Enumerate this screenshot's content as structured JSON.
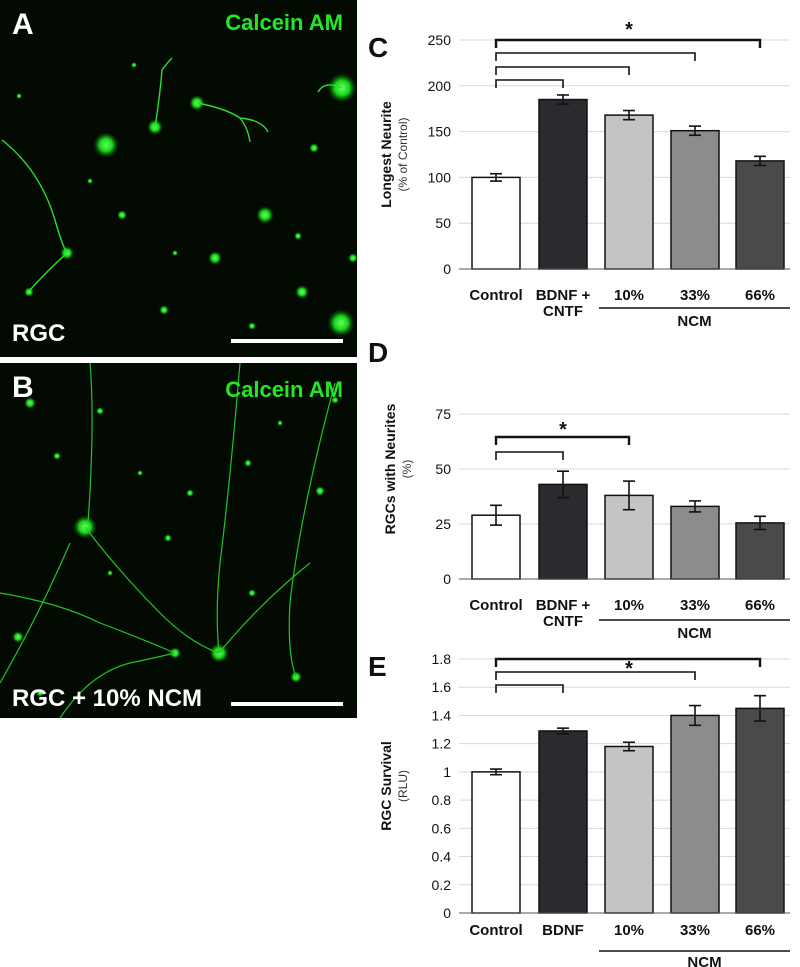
{
  "panel_a": {
    "letter": "A",
    "stain": "Calcein AM",
    "condition": "RGC"
  },
  "panel_b": {
    "letter": "B",
    "stain": "Calcein AM",
    "condition": "RGC + 10% NCM"
  },
  "chart_data": [
    {
      "panel": "C",
      "type": "bar",
      "ylabel": "Longest  Neurite",
      "ylabel_sub": "(% of Control)",
      "ylim": [
        0,
        250
      ],
      "yticks": [
        "0",
        "50",
        "100",
        "150",
        "200",
        "250"
      ],
      "categories": [
        "Control",
        "BDNF +\nCNTF",
        "10%",
        "33%",
        "66%"
      ],
      "values": [
        100,
        185,
        168,
        151,
        118
      ],
      "errors": [
        4,
        5,
        5,
        5,
        5
      ],
      "colors": [
        "#ffffff",
        "#2b2a2e",
        "#c4c4c4",
        "#8c8c8e",
        "#4a4a4d"
      ],
      "group_label": "NCM",
      "significance": "*"
    },
    {
      "panel": "D",
      "type": "bar",
      "ylabel": "RGCs with Neurites",
      "ylabel_sub": "(%)",
      "ylim": [
        0,
        100
      ],
      "yticks": [
        "0",
        "25",
        "50",
        "75"
      ],
      "categories": [
        "Control",
        "BDNF +\nCNTF",
        "10%",
        "33%",
        "66%"
      ],
      "values": [
        29,
        43,
        38,
        33,
        25.5
      ],
      "errors": [
        4.5,
        6,
        6.5,
        2.5,
        3
      ],
      "colors": [
        "#ffffff",
        "#2b2a2e",
        "#c4c4c4",
        "#8c8c8e",
        "#4a4a4d"
      ],
      "group_label": "NCM",
      "significance": "*"
    },
    {
      "panel": "E",
      "type": "bar",
      "ylabel": "RGC Survival",
      "ylabel_sub": "(RLU)",
      "ylim": [
        0,
        1.8
      ],
      "yticks": [
        "0",
        "0.2",
        "0.4",
        "0.6",
        "0.8",
        "1",
        "1.2",
        "1.4",
        "1.6",
        "1.8"
      ],
      "categories": [
        "Control",
        "BDNF",
        "10%",
        "33%",
        "66%"
      ],
      "values": [
        1.0,
        1.29,
        1.18,
        1.4,
        1.45
      ],
      "errors": [
        0.02,
        0.02,
        0.03,
        0.07,
        0.09
      ],
      "colors": [
        "#ffffff",
        "#2b2a2e",
        "#c4c4c4",
        "#8c8c8e",
        "#4a4a4d"
      ],
      "group_label": "NCM",
      "significance": "*"
    }
  ]
}
